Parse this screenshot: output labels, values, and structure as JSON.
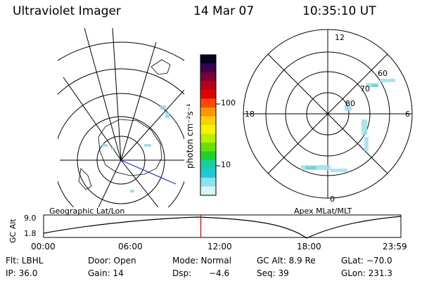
{
  "header": {
    "title": "Ultraviolet Imager",
    "date": "14 Mar 07",
    "time": "10:35:10 UT"
  },
  "colorbar": {
    "unit": "photon cm⁻²s⁻¹",
    "ticks": [
      "100",
      "10"
    ],
    "colors": [
      "#0a0020",
      "#3c0050",
      "#7a0038",
      "#b8001a",
      "#e00000",
      "#ff4a00",
      "#ff9400",
      "#ffd000",
      "#f4f400",
      "#b8ef00",
      "#6ae000",
      "#1ed030",
      "#16d0a0",
      "#22c8d8",
      "#8ae4ee",
      "#d8f4f8"
    ]
  },
  "left_map": {
    "label": "Geographic Lat/Lon"
  },
  "polar_map": {
    "label": "Apex MLat/MLT",
    "mlt_labels": {
      "top": "12",
      "bottom": "0",
      "left": "18",
      "right": "6"
    },
    "lat_labels": [
      "60",
      "70",
      "80"
    ]
  },
  "altitude_plot": {
    "ylabel": "GC Alt",
    "yticks": [
      "9.0",
      "1.8"
    ],
    "xticks": [
      "00:00",
      "06:00",
      "12:00",
      "18:00",
      "23:59"
    ],
    "current_time_fraction": 0.44,
    "marker_color": "#cc0000"
  },
  "info": {
    "row1": [
      "Flt: LBHL",
      "Door: Open",
      "Mode: Normal",
      "GC Alt: 8.9 Re",
      "GLat: −70.0"
    ],
    "row2": [
      "IP: 36.0",
      "Gain: 14",
      "Dsp:",
      "−4.6",
      "Seq: 39",
      "GLon: 231.3"
    ]
  }
}
